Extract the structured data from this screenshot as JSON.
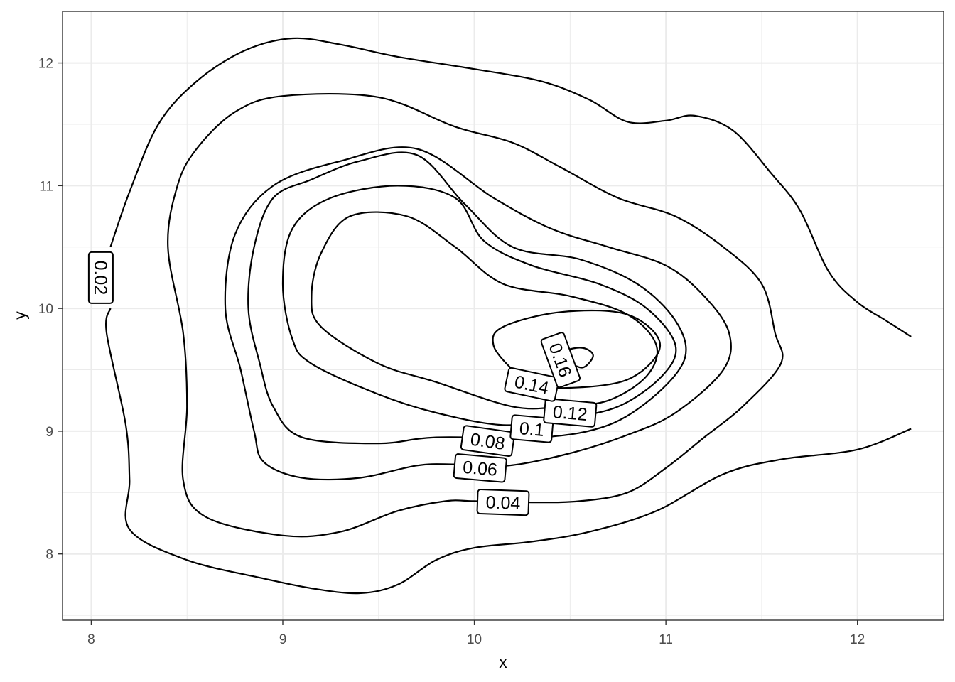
{
  "chart_data": {
    "type": "contour",
    "xlabel": "x",
    "ylabel": "y",
    "xlim": [
      7.85,
      12.45
    ],
    "ylim": [
      7.46,
      12.42
    ],
    "x_ticks": [
      8,
      9,
      10,
      11,
      12
    ],
    "x_tick_labels": [
      "8",
      "9",
      "10",
      "11",
      "12"
    ],
    "y_ticks": [
      8,
      9,
      10,
      11,
      12
    ],
    "y_tick_labels": [
      "8",
      "9",
      "10",
      "11",
      "12"
    ],
    "grid": true,
    "contour_levels": [
      {
        "level": 0.02,
        "label": "0.02",
        "label_at": [
          8.05,
          10.25
        ],
        "path": [
          [
            8.1,
            10.5
          ],
          [
            8.2,
            10.95
          ],
          [
            8.35,
            11.5
          ],
          [
            8.55,
            11.85
          ],
          [
            8.8,
            12.1
          ],
          [
            9.05,
            12.2
          ],
          [
            9.3,
            12.15
          ],
          [
            9.6,
            12.05
          ],
          [
            10.0,
            11.95
          ],
          [
            10.35,
            11.85
          ],
          [
            10.6,
            11.7
          ],
          [
            10.8,
            11.52
          ],
          [
            11.0,
            11.53
          ],
          [
            11.15,
            11.57
          ],
          [
            11.35,
            11.45
          ],
          [
            11.55,
            11.1
          ],
          [
            11.7,
            10.8
          ],
          [
            11.85,
            10.3
          ],
          [
            12.0,
            10.05
          ],
          [
            12.15,
            9.9
          ],
          [
            12.28,
            9.77
          ]
        ],
        "path2": [
          [
            12.28,
            9.02
          ],
          [
            12.0,
            8.85
          ],
          [
            11.6,
            8.77
          ],
          [
            11.3,
            8.65
          ],
          [
            10.95,
            8.35
          ],
          [
            10.6,
            8.18
          ],
          [
            10.3,
            8.1
          ],
          [
            10.0,
            8.05
          ],
          [
            9.8,
            7.95
          ],
          [
            9.6,
            7.75
          ],
          [
            9.4,
            7.68
          ],
          [
            9.15,
            7.72
          ],
          [
            8.9,
            7.8
          ],
          [
            8.5,
            7.95
          ],
          [
            8.2,
            8.2
          ],
          [
            8.2,
            8.6
          ],
          [
            8.18,
            9.05
          ],
          [
            8.08,
            9.8
          ],
          [
            8.1,
            10.0
          ]
        ]
      },
      {
        "level": 0.04,
        "label": "0.04",
        "label_at": [
          10.15,
          8.42
        ],
        "path": [
          [
            10.3,
            8.42
          ],
          [
            10.55,
            8.43
          ],
          [
            10.8,
            8.5
          ],
          [
            11.0,
            8.7
          ],
          [
            11.2,
            8.95
          ],
          [
            11.4,
            9.2
          ],
          [
            11.6,
            9.55
          ],
          [
            11.57,
            9.8
          ],
          [
            11.5,
            10.2
          ],
          [
            11.3,
            10.5
          ],
          [
            11.05,
            10.75
          ],
          [
            10.75,
            10.9
          ],
          [
            10.45,
            11.15
          ],
          [
            10.2,
            11.35
          ],
          [
            9.9,
            11.48
          ],
          [
            9.5,
            11.72
          ],
          [
            9.0,
            11.73
          ],
          [
            8.75,
            11.6
          ],
          [
            8.55,
            11.3
          ],
          [
            8.45,
            11.0
          ],
          [
            8.4,
            10.5
          ],
          [
            8.48,
            9.8
          ],
          [
            8.5,
            9.2
          ],
          [
            8.48,
            8.6
          ],
          [
            8.6,
            8.3
          ],
          [
            9.0,
            8.15
          ],
          [
            9.3,
            8.18
          ],
          [
            9.6,
            8.35
          ],
          [
            9.85,
            8.43
          ],
          [
            10.0,
            8.43
          ]
        ]
      },
      {
        "level": 0.06,
        "label": "0.06",
        "label_at": [
          10.03,
          8.7
        ],
        "path": [
          [
            10.18,
            8.72
          ],
          [
            10.5,
            8.82
          ],
          [
            10.8,
            8.97
          ],
          [
            11.05,
            9.15
          ],
          [
            11.3,
            9.5
          ],
          [
            11.33,
            9.8
          ],
          [
            11.2,
            10.1
          ],
          [
            11.0,
            10.35
          ],
          [
            10.7,
            10.5
          ],
          [
            10.4,
            10.65
          ],
          [
            10.1,
            10.9
          ],
          [
            9.7,
            11.3
          ],
          [
            9.3,
            11.2
          ],
          [
            8.95,
            11.0
          ],
          [
            8.75,
            10.6
          ],
          [
            8.7,
            10.0
          ],
          [
            8.78,
            9.5
          ],
          [
            8.85,
            9.0
          ],
          [
            8.9,
            8.75
          ],
          [
            9.1,
            8.62
          ],
          [
            9.4,
            8.62
          ],
          [
            9.7,
            8.72
          ],
          [
            9.9,
            8.73
          ]
        ]
      },
      {
        "level": 0.08,
        "label": "0.08",
        "label_at": [
          10.07,
          8.92
        ],
        "path": [
          [
            10.35,
            8.95
          ],
          [
            10.7,
            9.05
          ],
          [
            10.95,
            9.3
          ],
          [
            11.1,
            9.6
          ],
          [
            11.05,
            9.9
          ],
          [
            10.85,
            10.2
          ],
          [
            10.55,
            10.4
          ],
          [
            10.2,
            10.5
          ],
          [
            9.95,
            10.85
          ],
          [
            9.7,
            11.25
          ],
          [
            9.4,
            11.2
          ],
          [
            9.15,
            11.05
          ],
          [
            8.95,
            10.9
          ],
          [
            8.85,
            10.5
          ],
          [
            8.82,
            10.0
          ],
          [
            8.88,
            9.55
          ],
          [
            8.95,
            9.2
          ],
          [
            9.1,
            8.95
          ],
          [
            9.5,
            8.9
          ],
          [
            9.8,
            8.95
          ]
        ]
      },
      {
        "level": 0.1,
        "label": "0.1",
        "label_at": [
          10.3,
          9.02
        ],
        "path": [
          [
            10.45,
            9.1
          ],
          [
            10.75,
            9.2
          ],
          [
            10.98,
            9.45
          ],
          [
            11.05,
            9.7
          ],
          [
            10.9,
            10.0
          ],
          [
            10.65,
            10.2
          ],
          [
            10.3,
            10.35
          ],
          [
            10.05,
            10.55
          ],
          [
            9.9,
            10.9
          ],
          [
            9.6,
            11.0
          ],
          [
            9.25,
            10.9
          ],
          [
            9.05,
            10.65
          ],
          [
            9.0,
            10.2
          ],
          [
            9.05,
            9.75
          ],
          [
            9.15,
            9.55
          ],
          [
            9.5,
            9.3
          ],
          [
            9.8,
            9.15
          ],
          [
            10.15,
            9.05
          ]
        ]
      },
      {
        "level": 0.12,
        "label": "0.12",
        "label_at": [
          10.5,
          9.15
        ],
        "path": [
          [
            10.7,
            9.25
          ],
          [
            10.9,
            9.45
          ],
          [
            10.95,
            9.7
          ],
          [
            10.8,
            9.95
          ],
          [
            10.5,
            10.1
          ],
          [
            10.15,
            10.2
          ],
          [
            9.9,
            10.5
          ],
          [
            9.65,
            10.75
          ],
          [
            9.35,
            10.75
          ],
          [
            9.2,
            10.45
          ],
          [
            9.15,
            10.1
          ],
          [
            9.2,
            9.85
          ],
          [
            9.5,
            9.55
          ],
          [
            9.8,
            9.4
          ],
          [
            10.2,
            9.2
          ],
          [
            10.45,
            9.2
          ]
        ]
      },
      {
        "level": 0.14,
        "label": "0.14",
        "label_at": [
          10.3,
          9.38
        ],
        "path": [
          [
            10.45,
            9.35
          ],
          [
            10.8,
            9.42
          ],
          [
            10.97,
            9.7
          ],
          [
            10.8,
            9.95
          ],
          [
            10.45,
            9.97
          ],
          [
            10.15,
            9.85
          ],
          [
            10.1,
            9.7
          ],
          [
            10.2,
            9.5
          ],
          [
            10.3,
            9.4
          ]
        ]
      },
      {
        "level": 0.16,
        "label": "0.16",
        "label_at": [
          10.45,
          9.58
        ],
        "path": [
          [
            10.4,
            9.62
          ],
          [
            10.55,
            9.68
          ],
          [
            10.62,
            9.62
          ],
          [
            10.57,
            9.52
          ],
          [
            10.5,
            9.55
          ],
          [
            10.42,
            9.58
          ]
        ]
      }
    ]
  }
}
